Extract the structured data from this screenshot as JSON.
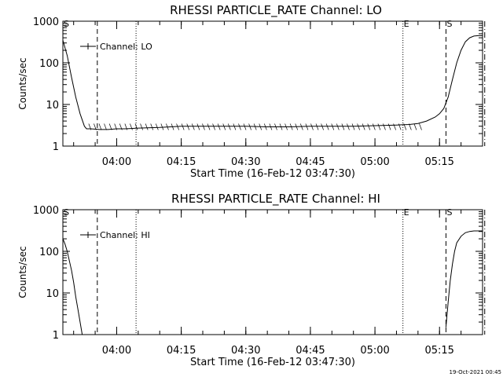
{
  "footer": {
    "timestamp": "19-Oct-2021 00:45"
  },
  "chart_data": [
    {
      "type": "line",
      "title": "RHESSI PARTICLE_RATE Channel: LO",
      "xlabel": "Start Time (16-Feb-12 03:47:30)",
      "ylabel": "Counts/sec",
      "yscale": "log",
      "ylim": [
        1,
        1000
      ],
      "xlim_minutes_after_start": [
        0,
        97.5
      ],
      "x_tick_labels": [
        "04:00",
        "04:15",
        "04:30",
        "04:45",
        "05:00",
        "05:15"
      ],
      "y_tick_labels": [
        "1",
        "10",
        "100",
        "1000"
      ],
      "legend": {
        "label": "Channel: LO",
        "placement": "top-left"
      },
      "markers": [
        {
          "label": "S",
          "time": "03:47:30",
          "style": "dashed"
        },
        {
          "label": "",
          "time": "03:55:30",
          "style": "dashed"
        },
        {
          "label": "",
          "time": "04:04:30",
          "style": "dotted"
        },
        {
          "label": "E",
          "time": "05:06:30",
          "style": "dotted"
        },
        {
          "label": "S",
          "time": "05:16:30",
          "style": "dashed"
        },
        {
          "label": "",
          "time": "05:25:30",
          "style": "dashdot"
        }
      ],
      "series": [
        {
          "name": "Channel: LO",
          "x": [
            "03:47:30",
            "03:48:30",
            "03:49:30",
            "03:50:30",
            "03:51:30",
            "03:52:30",
            "03:53:00",
            "03:54:00",
            "03:56:00",
            "03:58:00",
            "04:00:00",
            "04:02:00",
            "04:05:00",
            "04:10:00",
            "04:15:00",
            "04:20:00",
            "04:25:00",
            "04:30:00",
            "04:35:00",
            "04:40:00",
            "04:45:00",
            "04:50:00",
            "04:55:00",
            "05:00:00",
            "05:05:00",
            "05:08:00",
            "05:10:00",
            "05:12:00",
            "05:14:00",
            "05:15:00",
            "05:16:00",
            "05:17:00",
            "05:18:00",
            "05:19:00",
            "05:20:00",
            "05:21:00",
            "05:22:00",
            "05:23:00",
            "05:24:00",
            "05:25:00"
          ],
          "y": [
            350,
            150,
            45,
            15,
            6,
            3,
            2.6,
            2.6,
            2.5,
            2.5,
            2.6,
            2.6,
            2.7,
            2.8,
            3,
            3,
            3,
            3,
            2.9,
            2.9,
            3,
            3,
            3,
            3.1,
            3.2,
            3.3,
            3.5,
            4,
            5,
            6,
            8,
            15,
            40,
            100,
            200,
            320,
            400,
            440,
            450,
            450
          ]
        }
      ]
    },
    {
      "type": "line",
      "title": "RHESSI PARTICLE_RATE Channel: HI",
      "xlabel": "Start Time (16-Feb-12 03:47:30)",
      "ylabel": "Counts/sec",
      "yscale": "log",
      "ylim": [
        1,
        1000
      ],
      "xlim_minutes_after_start": [
        0,
        97.5
      ],
      "x_tick_labels": [
        "04:00",
        "04:15",
        "04:30",
        "04:45",
        "05:00",
        "05:15"
      ],
      "y_tick_labels": [
        "1",
        "10",
        "100",
        "1000"
      ],
      "legend": {
        "label": "Channel: HI",
        "placement": "top-left"
      },
      "markers": [
        {
          "label": "S",
          "time": "03:47:30",
          "style": "dashed"
        },
        {
          "label": "",
          "time": "03:55:30",
          "style": "dashed"
        },
        {
          "label": "",
          "time": "04:04:30",
          "style": "dotted"
        },
        {
          "label": "E",
          "time": "05:06:30",
          "style": "dotted"
        },
        {
          "label": "S",
          "time": "05:16:30",
          "style": "dashed"
        },
        {
          "label": "",
          "time": "05:25:30",
          "style": "dashdot"
        }
      ],
      "series": [
        {
          "name": "Channel: HI",
          "x": [
            "03:47:30",
            "03:48:00",
            "03:48:30",
            "03:49:00",
            "03:49:30",
            "03:50:00",
            "03:50:30",
            "03:51:00",
            "03:51:30",
            "03:52:00"
          ],
          "y": [
            200,
            150,
            100,
            60,
            35,
            18,
            8,
            4,
            2,
            1
          ]
        },
        {
          "name": "Channel: HI",
          "x": [
            "05:16:30",
            "05:17:00",
            "05:17:30",
            "05:18:00",
            "05:18:30",
            "05:19:00",
            "05:20:00",
            "05:21:00",
            "05:22:00",
            "05:23:00",
            "05:24:00",
            "05:25:00"
          ],
          "y": [
            1.5,
            6,
            20,
            50,
            100,
            160,
            230,
            280,
            300,
            310,
            310,
            310
          ]
        }
      ]
    }
  ]
}
